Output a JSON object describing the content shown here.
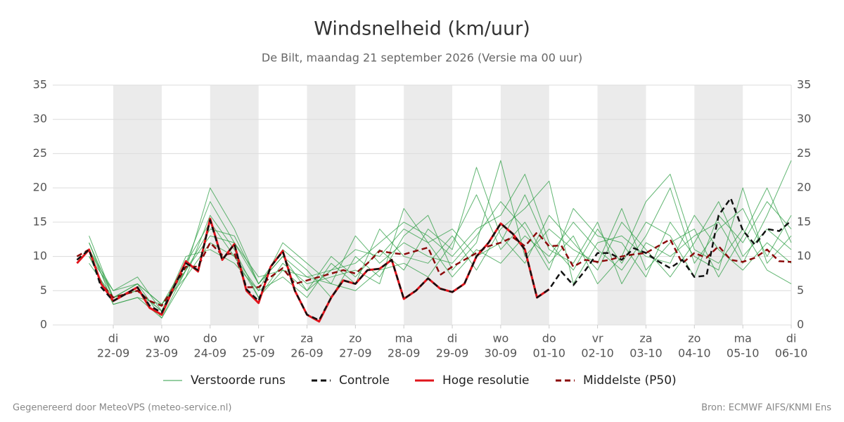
{
  "chart_data": {
    "type": "line",
    "title": "Windsnelheid (km/uur)",
    "subtitle": "De Bilt, maandag 21 september 2026 (Versie ma 00 uur)",
    "footer_left": "Gegenereerd door MeteoVPS (meteo-service.nl)",
    "footer_right": "Bron: ECMWF AIFS/KNMI Ens",
    "xlim": [
      -6,
      360
    ],
    "xticks": [
      {
        "value": 24,
        "label": "di",
        "date": "22-09"
      },
      {
        "value": 48,
        "label": "wo",
        "date": "23-09"
      },
      {
        "value": 72,
        "label": "do",
        "date": "24-09"
      },
      {
        "value": 96,
        "label": "vr",
        "date": "25-09"
      },
      {
        "value": 120,
        "label": "za",
        "date": "26-09"
      },
      {
        "value": 144,
        "label": "zo",
        "date": "27-09"
      },
      {
        "value": 168,
        "label": "ma",
        "date": "28-09"
      },
      {
        "value": 192,
        "label": "di",
        "date": "29-09"
      },
      {
        "value": 216,
        "label": "wo",
        "date": "30-09"
      },
      {
        "value": 240,
        "label": "do",
        "date": "01-10"
      },
      {
        "value": 264,
        "label": "vr",
        "date": "02-10"
      },
      {
        "value": 288,
        "label": "za",
        "date": "03-10"
      },
      {
        "value": 312,
        "label": "zo",
        "date": "04-10"
      },
      {
        "value": 336,
        "label": "ma",
        "date": "05-10"
      },
      {
        "value": 360,
        "label": "di",
        "date": "06-10"
      }
    ],
    "shaded_ranges": [
      [
        24,
        48
      ],
      [
        72,
        96
      ],
      [
        120,
        144
      ],
      [
        168,
        192
      ],
      [
        216,
        240
      ],
      [
        264,
        288
      ],
      [
        312,
        336
      ]
    ],
    "ylim": [
      0,
      35
    ],
    "yticks": [
      0,
      5,
      10,
      15,
      20,
      25,
      30,
      35
    ],
    "y2ticks": [
      0,
      5,
      10,
      15,
      20,
      25,
      30,
      35
    ],
    "grid": true,
    "ensemble": {
      "name": "Verstoorde runs",
      "color": "#2e9e44",
      "x": [
        12,
        24,
        36,
        48,
        60,
        72,
        84,
        96,
        108,
        120,
        132,
        144,
        156,
        168,
        180,
        192,
        204,
        216,
        228,
        240,
        252,
        264,
        276,
        288,
        300,
        312,
        324,
        336,
        348,
        360
      ],
      "members": [
        [
          12,
          4,
          6,
          3,
          9,
          18,
          12,
          6,
          10,
          5,
          8,
          9,
          12,
          15,
          13,
          10,
          14,
          16,
          22,
          12,
          8,
          14,
          9,
          15,
          13,
          7,
          16,
          12,
          18,
          14
        ],
        [
          10,
          3,
          4,
          1,
          7,
          12,
          10,
          4,
          8,
          7,
          6,
          5,
          8,
          9,
          7,
          12,
          19,
          11,
          15,
          9,
          13,
          6,
          10,
          18,
          22,
          11,
          9,
          14,
          8,
          6
        ],
        [
          11,
          5,
          7,
          2,
          8,
          14,
          13,
          6,
          11,
          8,
          4,
          10,
          7,
          13,
          16,
          8,
          12,
          24,
          10,
          14,
          11,
          9,
          17,
          8,
          12,
          14,
          7,
          13,
          20,
          12
        ],
        [
          9,
          4,
          5,
          2,
          10,
          11,
          9,
          5,
          7,
          4,
          9,
          6,
          14,
          10,
          9,
          13,
          8,
          14,
          17,
          21,
          6,
          12,
          13,
          10,
          9,
          16,
          11,
          8,
          12,
          9
        ],
        [
          12,
          3,
          4,
          3,
          7,
          16,
          11,
          4,
          9,
          6,
          7,
          8,
          6,
          17,
          12,
          7,
          11,
          9,
          13,
          10,
          15,
          11,
          8,
          13,
          20,
          9,
          14,
          17,
          10,
          16
        ],
        [
          10,
          5,
          6,
          1,
          8,
          13,
          12,
          7,
          8,
          5,
          10,
          7,
          11,
          8,
          14,
          11,
          23,
          13,
          9,
          16,
          12,
          8,
          15,
          11,
          7,
          12,
          18,
          10,
          14,
          11
        ],
        [
          11,
          4,
          5,
          2,
          9,
          15,
          10,
          5,
          12,
          9,
          6,
          13,
          9,
          12,
          10,
          9,
          13,
          18,
          14,
          8,
          17,
          13,
          12,
          7,
          15,
          10,
          8,
          20,
          9,
          13
        ],
        [
          13,
          4,
          6,
          3,
          8,
          20,
          14,
          6,
          10,
          7,
          8,
          11,
          10,
          14,
          12,
          14,
          10,
          12,
          19,
          11,
          9,
          15,
          6,
          12,
          10,
          13,
          15,
          9,
          16,
          24
        ]
      ]
    },
    "series": [
      {
        "name": "Controle",
        "color": "#111111",
        "style": "dashed",
        "x": [
          6,
          12,
          18,
          24,
          30,
          36,
          42,
          48,
          54,
          60,
          66,
          72,
          78,
          84,
          90,
          96,
          102,
          108,
          114,
          120,
          126,
          132,
          138,
          144,
          150,
          156,
          162,
          168,
          174,
          180,
          186,
          192,
          198,
          204,
          210,
          216,
          222,
          228,
          234,
          240,
          246,
          252,
          258,
          264,
          270,
          276,
          282,
          288,
          294,
          300,
          306,
          312,
          318,
          324,
          330,
          336,
          342,
          348,
          354,
          360
        ],
        "values": [
          9.5,
          11,
          5.5,
          3.5,
          4.5,
          5.5,
          2.8,
          1.8,
          5.5,
          9,
          8,
          15.3,
          9.5,
          11.8,
          5.2,
          3.5,
          8.5,
          10.7,
          5,
          1.5,
          0.7,
          4,
          6.5,
          6,
          8,
          8.2,
          9.5,
          3.8,
          5,
          6.8,
          5.3,
          4.8,
          6,
          10,
          12,
          14.8,
          13.3,
          11,
          4,
          5.2,
          7.8,
          5.8,
          8,
          10.5,
          10.5,
          9.5,
          11.2,
          10.5,
          9.3,
          8.3,
          9.5,
          7,
          7.2,
          16,
          18.5,
          13.8,
          11.7,
          14,
          13.7,
          15.2
        ]
      },
      {
        "name": "Hoge resolutie",
        "color": "#e0141b",
        "style": "solid",
        "x": [
          6,
          12,
          18,
          24,
          30,
          36,
          42,
          48,
          54,
          60,
          66,
          72,
          78,
          84,
          90,
          96,
          102,
          108,
          114,
          120,
          126,
          132,
          138,
          144,
          150,
          156,
          162,
          168,
          174,
          180,
          186,
          192,
          198,
          204,
          210,
          216,
          222,
          228,
          234,
          240
        ],
        "values": [
          9,
          11,
          6,
          3.5,
          4.5,
          5.5,
          2.5,
          1.5,
          5.5,
          9.3,
          7.8,
          15.5,
          9.5,
          11.8,
          5,
          3.2,
          8.5,
          10.8,
          5,
          1.5,
          0.5,
          4,
          6.5,
          6,
          8,
          8.2,
          9.5,
          3.8,
          5,
          6.8,
          5.3,
          4.8,
          6,
          10,
          12,
          14.8,
          13.3,
          11,
          4,
          5.2
        ]
      },
      {
        "name": "Middelste (P50)",
        "color": "#8b0a0a",
        "style": "dashed",
        "x": [
          6,
          12,
          18,
          24,
          30,
          36,
          42,
          48,
          54,
          60,
          66,
          72,
          78,
          84,
          90,
          96,
          102,
          108,
          114,
          120,
          126,
          132,
          138,
          144,
          150,
          156,
          162,
          168,
          174,
          180,
          186,
          192,
          198,
          204,
          210,
          216,
          222,
          228,
          234,
          240,
          246,
          252,
          258,
          264,
          270,
          276,
          282,
          288,
          294,
          300,
          306,
          312,
          318,
          324,
          330,
          336,
          342,
          348,
          354,
          360
        ],
        "values": [
          10,
          11,
          6,
          4,
          4.5,
          5,
          3.5,
          2.8,
          5.5,
          8.5,
          8.5,
          12,
          10.2,
          10.5,
          5.5,
          5.5,
          7,
          8.3,
          6,
          6.5,
          7,
          7.5,
          8,
          7.5,
          9,
          10.8,
          10.5,
          10.3,
          10.8,
          11.3,
          7.3,
          8.5,
          9.5,
          10.5,
          11.5,
          12,
          12.8,
          11.5,
          13.5,
          11.5,
          11.6,
          8.5,
          9.5,
          9.2,
          9.5,
          10,
          10.3,
          10.5,
          11.5,
          12.5,
          9,
          10.5,
          9.8,
          11.5,
          9.5,
          9.2,
          9.8,
          11,
          9.3,
          9.2
        ]
      }
    ]
  }
}
